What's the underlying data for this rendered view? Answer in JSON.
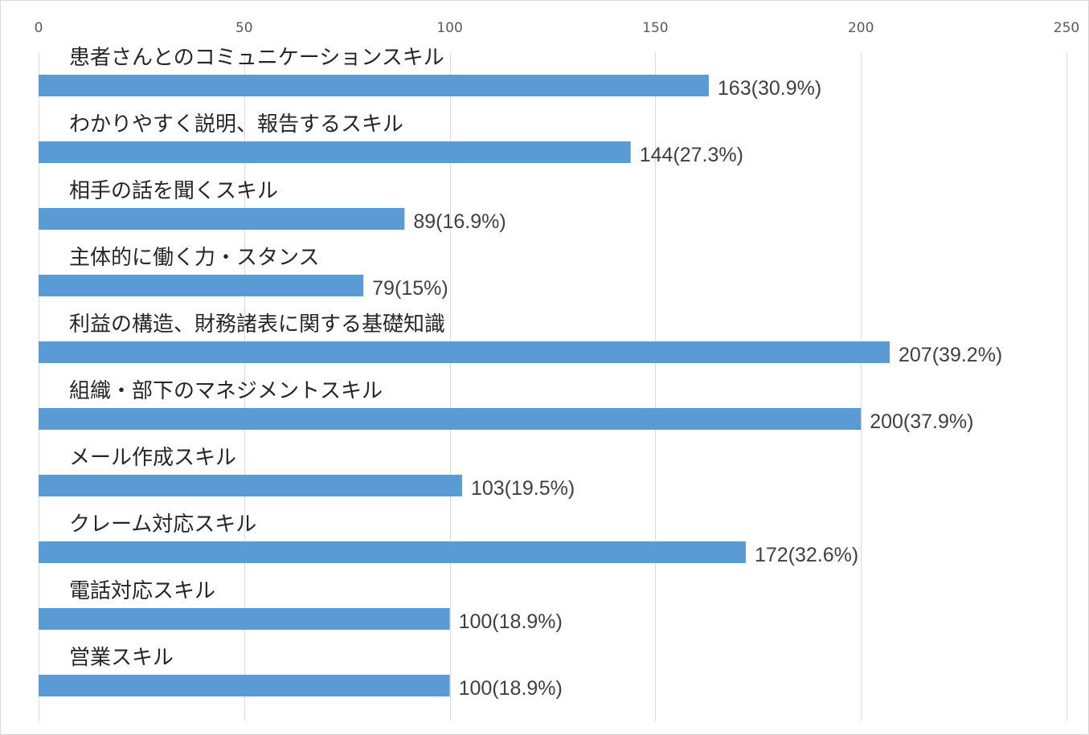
{
  "chart_data": {
    "type": "bar",
    "orientation": "horizontal",
    "title": "",
    "xlabel": "",
    "ylabel": "",
    "xlim": [
      0,
      250
    ],
    "x_ticks": [
      0,
      50,
      100,
      150,
      200,
      250
    ],
    "x_axis_position": "top",
    "grid": true,
    "legend": "none",
    "categories": [
      "患者さんとのコミュニケーションスキル",
      "わかりやすく説明、報告するスキル",
      "相手の話を聞くスキル",
      "主体的に働く力・スタンス",
      "利益の構造、財務諸表に関する基礎知識",
      "組織・部下のマネジメントスキル",
      "メール作成スキル",
      "クレーム対応スキル",
      "電話対応スキル",
      "営業スキル"
    ],
    "values": [
      163,
      144,
      89,
      79,
      207,
      200,
      103,
      172,
      100,
      100
    ],
    "data_labels": [
      "163(30.9%)",
      "144(27.3%)",
      "89(16.9%)",
      "79(15%)",
      "207(39.2%)",
      "200(37.9%)",
      "103(19.5%)",
      "172(32.6%)",
      "100(18.9%)",
      "100(18.9%)"
    ],
    "bar_color": "#5b9bd5",
    "grid_color": "#d9d9d9"
  }
}
